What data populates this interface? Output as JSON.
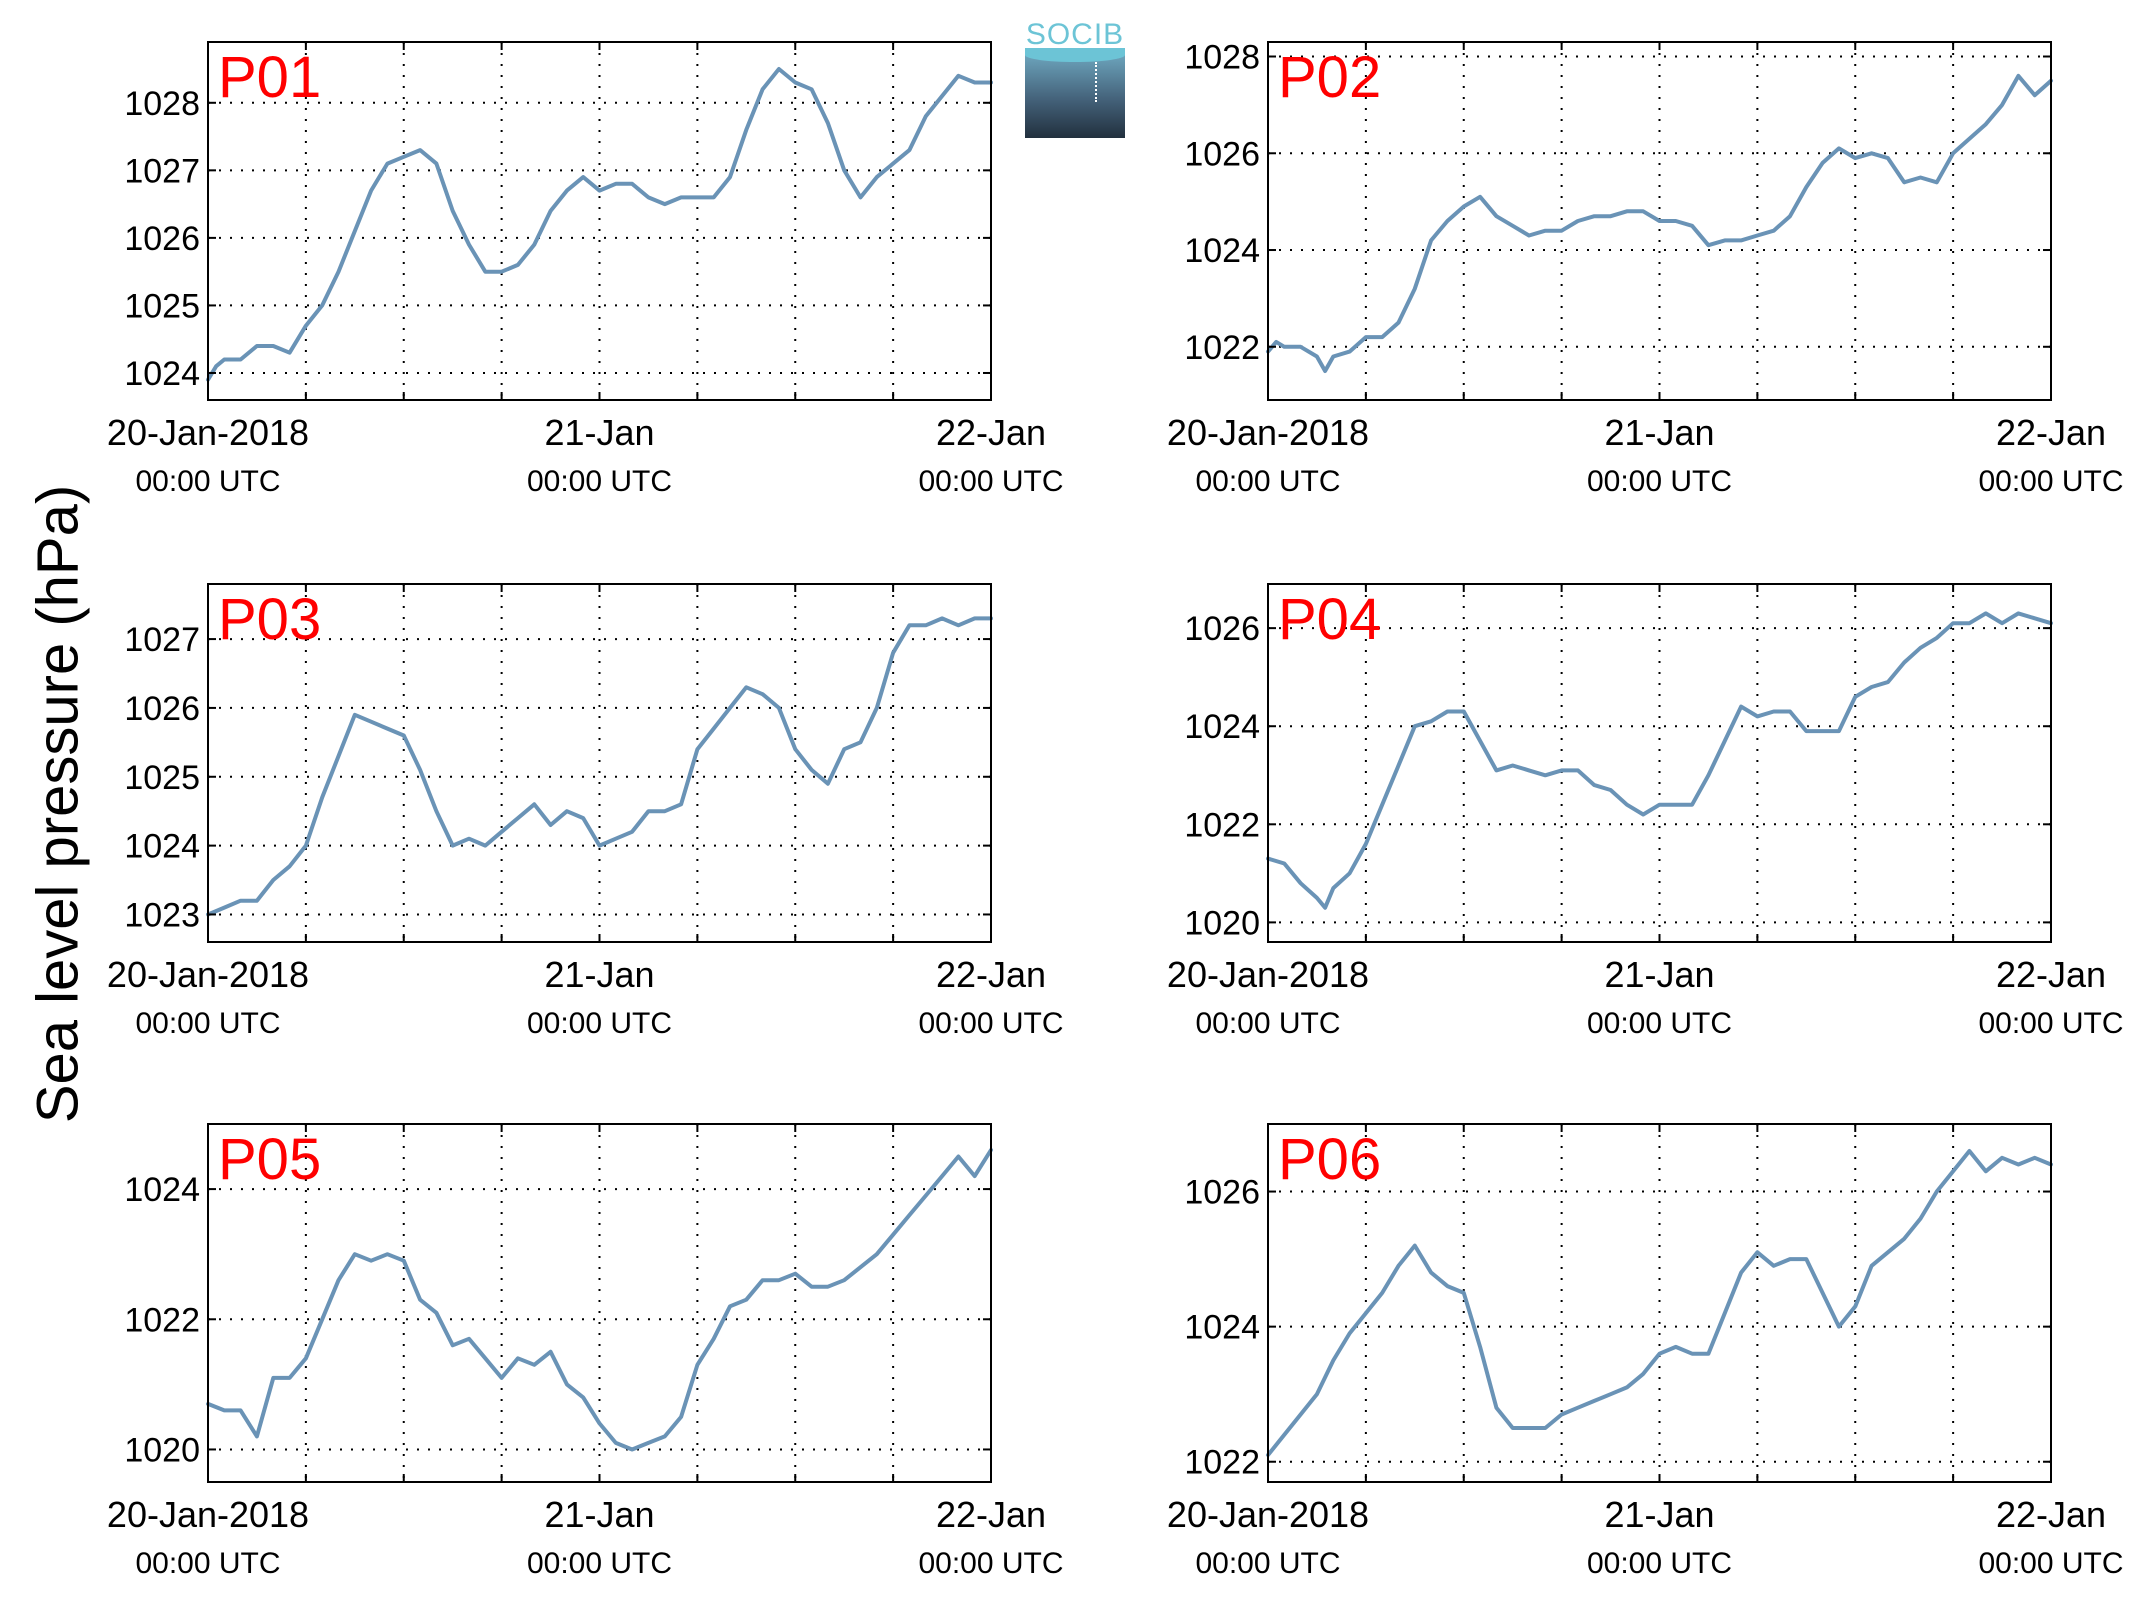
{
  "figure": {
    "ylabel": "Sea level pressure (hPa)",
    "logo_text": "SOCIB",
    "colors": {
      "line": "#6a93b6",
      "panel_label": "#ff0000",
      "axes": "#000000",
      "grid": "#000000"
    }
  },
  "chart_data": [
    {
      "type": "line",
      "title": "P01",
      "xticks": [
        "20-Jan-2018",
        "21-Jan",
        "22-Jan"
      ],
      "xticks_sub": [
        "00:00 UTC",
        "00:00 UTC",
        "00:00 UTC"
      ],
      "xlim": [
        0,
        48
      ],
      "ylim": [
        1023.6,
        1028.9
      ],
      "yticks": [
        1024,
        1025,
        1026,
        1027,
        1028
      ],
      "grid": true,
      "x": [
        0,
        0.5,
        1,
        2,
        3,
        4,
        5,
        6,
        7,
        8,
        9,
        10,
        11,
        12,
        13,
        14,
        15,
        16,
        17,
        18,
        19,
        20,
        21,
        22,
        23,
        24,
        25,
        26,
        27,
        28,
        29,
        30,
        31,
        32,
        33,
        34,
        35,
        36,
        37,
        38,
        39,
        40,
        41,
        42,
        43,
        44,
        45,
        46,
        47,
        48
      ],
      "y": [
        1023.9,
        1024.1,
        1024.2,
        1024.2,
        1024.4,
        1024.4,
        1024.3,
        1024.7,
        1025.0,
        1025.5,
        1026.1,
        1026.7,
        1027.1,
        1027.2,
        1027.3,
        1027.1,
        1026.4,
        1025.9,
        1025.5,
        1025.5,
        1025.6,
        1025.9,
        1026.4,
        1026.7,
        1026.9,
        1026.7,
        1026.8,
        1026.8,
        1026.6,
        1026.5,
        1026.6,
        1026.6,
        1026.6,
        1026.9,
        1027.6,
        1028.2,
        1028.5,
        1028.3,
        1028.2,
        1027.7,
        1027.0,
        1026.6,
        1026.9,
        1027.1,
        1027.3,
        1027.8,
        1028.1,
        1028.4,
        1028.3,
        1028.3
      ]
    },
    {
      "type": "line",
      "title": "P02",
      "xticks": [
        "20-Jan-2018",
        "21-Jan",
        "22-Jan"
      ],
      "xticks_sub": [
        "00:00 UTC",
        "00:00 UTC",
        "00:00 UTC"
      ],
      "xlim": [
        0,
        48
      ],
      "ylim": [
        1020.9,
        1028.3
      ],
      "yticks": [
        1022,
        1024,
        1026,
        1028
      ],
      "grid": true,
      "x": [
        0,
        0.5,
        1,
        2,
        3,
        3.5,
        4,
        5,
        6,
        7,
        8,
        9,
        10,
        11,
        12,
        13,
        14,
        15,
        16,
        17,
        18,
        19,
        20,
        21,
        22,
        23,
        24,
        25,
        26,
        27,
        28,
        29,
        30,
        31,
        32,
        33,
        34,
        35,
        36,
        37,
        38,
        39,
        40,
        41,
        42,
        43,
        44,
        45,
        46,
        47,
        48
      ],
      "y": [
        1021.9,
        1022.1,
        1022.0,
        1022.0,
        1021.8,
        1021.5,
        1021.8,
        1021.9,
        1022.2,
        1022.2,
        1022.5,
        1023.2,
        1024.2,
        1024.6,
        1024.9,
        1025.1,
        1024.7,
        1024.5,
        1024.3,
        1024.4,
        1024.4,
        1024.6,
        1024.7,
        1024.7,
        1024.8,
        1024.8,
        1024.6,
        1024.6,
        1024.5,
        1024.1,
        1024.2,
        1024.2,
        1024.3,
        1024.4,
        1024.7,
        1025.3,
        1025.8,
        1026.1,
        1025.9,
        1026.0,
        1025.9,
        1025.4,
        1025.5,
        1025.4,
        1026.0,
        1026.3,
        1026.6,
        1027.0,
        1027.6,
        1027.2,
        1027.5
      ]
    },
    {
      "type": "line",
      "title": "P03",
      "xticks": [
        "20-Jan-2018",
        "21-Jan",
        "22-Jan"
      ],
      "xticks_sub": [
        "00:00 UTC",
        "00:00 UTC",
        "00:00 UTC"
      ],
      "xlim": [
        0,
        48
      ],
      "ylim": [
        1022.6,
        1027.8
      ],
      "yticks": [
        1023,
        1024,
        1025,
        1026,
        1027
      ],
      "grid": true,
      "x": [
        0,
        1,
        2,
        3,
        4,
        5,
        6,
        7,
        8,
        9,
        10,
        11,
        12,
        13,
        14,
        15,
        16,
        17,
        18,
        19,
        20,
        21,
        22,
        23,
        24,
        25,
        26,
        27,
        28,
        29,
        30,
        31,
        32,
        33,
        34,
        35,
        36,
        37,
        38,
        39,
        40,
        41,
        42,
        43,
        44,
        45,
        46,
        47,
        48
      ],
      "y": [
        1023.0,
        1023.1,
        1023.2,
        1023.2,
        1023.5,
        1023.7,
        1024.0,
        1024.7,
        1025.3,
        1025.9,
        1025.8,
        1025.7,
        1025.6,
        1025.1,
        1024.5,
        1024.0,
        1024.1,
        1024.0,
        1024.2,
        1024.4,
        1024.6,
        1024.3,
        1024.5,
        1024.4,
        1024.0,
        1024.1,
        1024.2,
        1024.5,
        1024.5,
        1024.6,
        1025.4,
        1025.7,
        1026.0,
        1026.3,
        1026.2,
        1026.0,
        1025.4,
        1025.1,
        1024.9,
        1025.4,
        1025.5,
        1026.0,
        1026.8,
        1027.2,
        1027.2,
        1027.3,
        1027.2,
        1027.3,
        1027.3
      ]
    },
    {
      "type": "line",
      "title": "P04",
      "xticks": [
        "20-Jan-2018",
        "21-Jan",
        "22-Jan"
      ],
      "xticks_sub": [
        "00:00 UTC",
        "00:00 UTC",
        "00:00 UTC"
      ],
      "xlim": [
        0,
        48
      ],
      "ylim": [
        1019.6,
        1026.9
      ],
      "yticks": [
        1020,
        1022,
        1024,
        1026
      ],
      "grid": true,
      "x": [
        0,
        1,
        2,
        3,
        3.5,
        4,
        5,
        6,
        7,
        8,
        9,
        10,
        11,
        12,
        13,
        14,
        15,
        16,
        17,
        18,
        19,
        20,
        21,
        22,
        23,
        24,
        25,
        26,
        27,
        28,
        29,
        30,
        31,
        32,
        33,
        34,
        35,
        36,
        37,
        38,
        39,
        40,
        41,
        42,
        43,
        44,
        45,
        46,
        47,
        48
      ],
      "y": [
        1021.3,
        1021.2,
        1020.8,
        1020.5,
        1020.3,
        1020.7,
        1021.0,
        1021.6,
        1022.4,
        1023.2,
        1024.0,
        1024.1,
        1024.3,
        1024.3,
        1023.7,
        1023.1,
        1023.2,
        1023.1,
        1023.0,
        1023.1,
        1023.1,
        1022.8,
        1022.7,
        1022.4,
        1022.2,
        1022.4,
        1022.4,
        1022.4,
        1023.0,
        1023.7,
        1024.4,
        1024.2,
        1024.3,
        1024.3,
        1023.9,
        1023.9,
        1023.9,
        1024.6,
        1024.8,
        1024.9,
        1025.3,
        1025.6,
        1025.8,
        1026.1,
        1026.1,
        1026.3,
        1026.1,
        1026.3,
        1026.2,
        1026.1
      ]
    },
    {
      "type": "line",
      "title": "P05",
      "xticks": [
        "20-Jan-2018",
        "21-Jan",
        "22-Jan"
      ],
      "xticks_sub": [
        "00:00 UTC",
        "00:00 UTC",
        "00:00 UTC"
      ],
      "xlim": [
        0,
        48
      ],
      "ylim": [
        1019.5,
        1025.0
      ],
      "yticks": [
        1020,
        1022,
        1024
      ],
      "grid": true,
      "x": [
        0,
        1,
        2,
        3,
        4,
        5,
        6,
        7,
        8,
        9,
        10,
        11,
        12,
        13,
        14,
        15,
        16,
        17,
        18,
        19,
        20,
        21,
        22,
        23,
        24,
        25,
        26,
        27,
        28,
        29,
        30,
        31,
        32,
        33,
        34,
        35,
        36,
        37,
        38,
        39,
        40,
        41,
        42,
        43,
        44,
        45,
        46,
        47,
        48
      ],
      "y": [
        1020.7,
        1020.6,
        1020.6,
        1020.2,
        1021.1,
        1021.1,
        1021.4,
        1022.0,
        1022.6,
        1023.0,
        1022.9,
        1023.0,
        1022.9,
        1022.3,
        1022.1,
        1021.6,
        1021.7,
        1021.4,
        1021.1,
        1021.4,
        1021.3,
        1021.5,
        1021.0,
        1020.8,
        1020.4,
        1020.1,
        1020.0,
        1020.1,
        1020.2,
        1020.5,
        1021.3,
        1021.7,
        1022.2,
        1022.3,
        1022.6,
        1022.6,
        1022.7,
        1022.5,
        1022.5,
        1022.6,
        1022.8,
        1023.0,
        1023.3,
        1023.6,
        1023.9,
        1024.2,
        1024.5,
        1024.2,
        1024.6
      ]
    },
    {
      "type": "line",
      "title": "P06",
      "xticks": [
        "20-Jan-2018",
        "21-Jan",
        "22-Jan"
      ],
      "xticks_sub": [
        "00:00 UTC",
        "00:00 UTC",
        "00:00 UTC"
      ],
      "xlim": [
        0,
        48
      ],
      "ylim": [
        1021.7,
        1027.0
      ],
      "yticks": [
        1022,
        1024,
        1026
      ],
      "grid": true,
      "x": [
        0,
        1,
        2,
        3,
        4,
        5,
        6,
        7,
        8,
        9,
        10,
        11,
        12,
        13,
        14,
        15,
        16,
        17,
        18,
        19,
        20,
        21,
        22,
        23,
        24,
        25,
        26,
        27,
        28,
        29,
        30,
        31,
        32,
        33,
        34,
        35,
        36,
        37,
        38,
        39,
        40,
        41,
        42,
        43,
        44,
        45,
        46,
        47,
        48
      ],
      "y": [
        1022.1,
        1022.4,
        1022.7,
        1023.0,
        1023.5,
        1023.9,
        1024.2,
        1024.5,
        1024.9,
        1025.2,
        1024.8,
        1024.6,
        1024.5,
        1023.7,
        1022.8,
        1022.5,
        1022.5,
        1022.5,
        1022.7,
        1022.8,
        1022.9,
        1023.0,
        1023.1,
        1023.3,
        1023.6,
        1023.7,
        1023.6,
        1023.6,
        1024.2,
        1024.8,
        1025.1,
        1024.9,
        1025.0,
        1025.0,
        1024.5,
        1024.0,
        1024.3,
        1024.9,
        1025.1,
        1025.3,
        1025.6,
        1026.0,
        1026.3,
        1026.6,
        1026.3,
        1026.5,
        1026.4,
        1026.5,
        1026.4
      ]
    }
  ]
}
